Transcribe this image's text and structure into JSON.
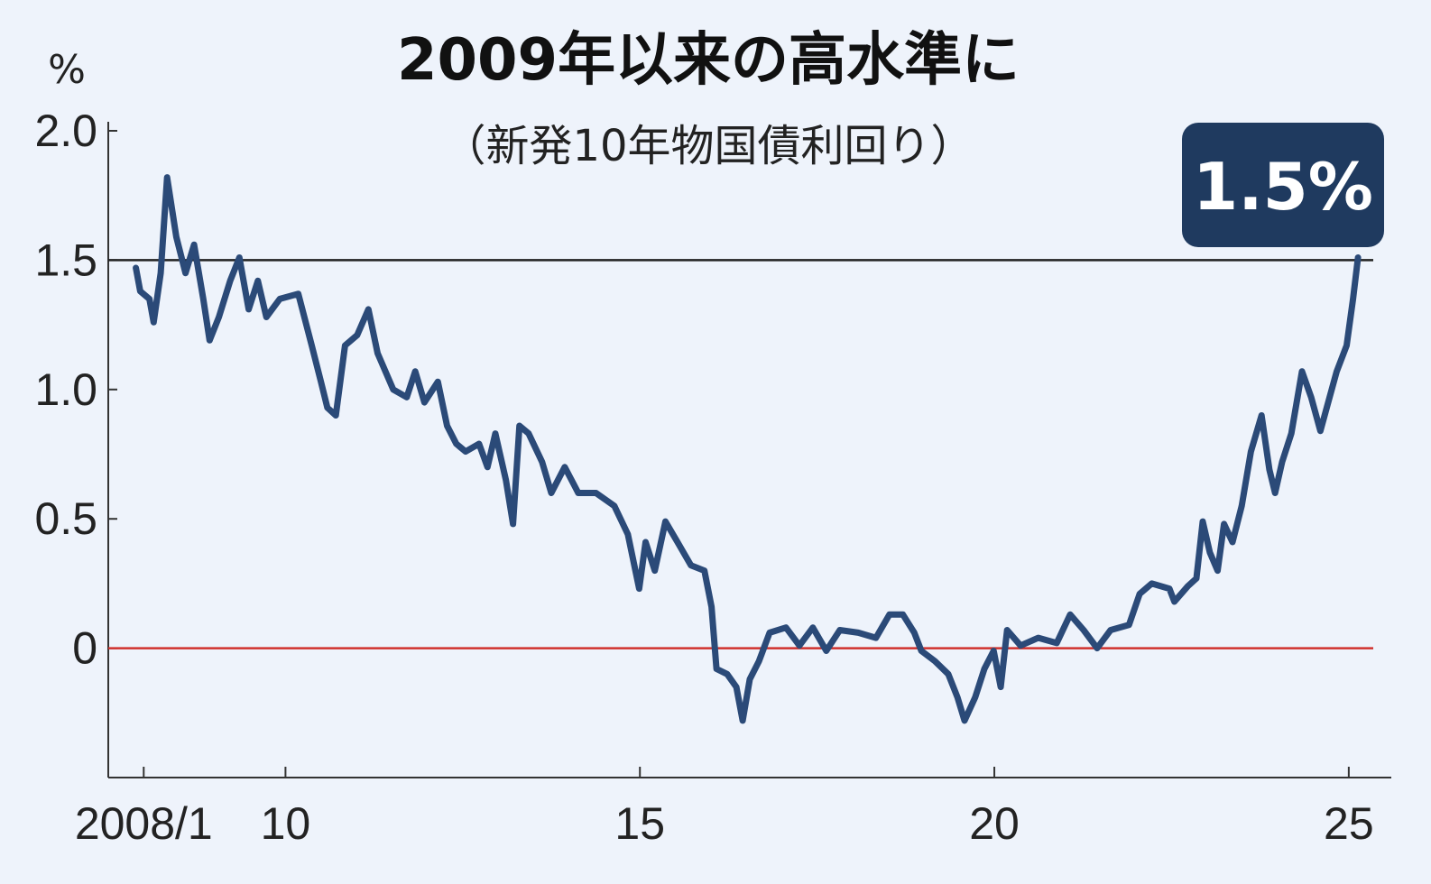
{
  "chart_data": {
    "type": "line",
    "title": "2009年以来の高水準に",
    "subtitle": "（新発10年物国債利回り）",
    "ylabel": "%",
    "xlabel": "",
    "xlim": [
      2007.5,
      2025.6
    ],
    "ylim": [
      -0.5,
      2.0
    ],
    "grid": false,
    "x_ticks": [
      {
        "value": 2008,
        "label": "2008/1"
      },
      {
        "value": 2010,
        "label": "10"
      },
      {
        "value": 2015,
        "label": "15"
      },
      {
        "value": 2020,
        "label": "20"
      },
      {
        "value": 2025,
        "label": "25"
      }
    ],
    "y_ticks": [
      {
        "value": 2.0,
        "label": "2.0"
      },
      {
        "value": 1.5,
        "label": "1.5"
      },
      {
        "value": 1.0,
        "label": "1.0"
      },
      {
        "value": 0.5,
        "label": "0.5"
      },
      {
        "value": 0,
        "label": "0"
      }
    ],
    "reference_lines": [
      {
        "value": 1.5,
        "color": "#222222"
      },
      {
        "value": 0,
        "color": "#d0312d"
      }
    ],
    "annotation": {
      "text": "1.5%",
      "x": 2025.13,
      "y": 1.5,
      "color": "#1f3a5f"
    },
    "line_color": "#2b4a78",
    "series": [
      {
        "x": [
          2007.89,
          2007.95,
          2008.08,
          2008.14,
          2008.24,
          2008.33,
          2008.46,
          2008.59,
          2008.71,
          2008.84,
          2008.93,
          2009.06,
          2009.22,
          2009.35,
          2009.48,
          2009.61,
          2009.73,
          2009.92,
          2010.18,
          2010.37,
          2010.5,
          2010.59,
          2010.71,
          2010.84,
          2011.01,
          2011.17,
          2011.3,
          2011.52,
          2011.71,
          2011.83,
          2011.96,
          2012.15,
          2012.28,
          2012.41,
          2012.54,
          2012.73,
          2012.85,
          2012.96,
          2013.11,
          2013.21,
          2013.3,
          2013.43,
          2013.62,
          2013.75,
          2013.94,
          2014.13,
          2014.38,
          2014.64,
          2014.83,
          2014.99,
          2015.08,
          2015.21,
          2015.36,
          2015.53,
          2015.72,
          2015.91,
          2016.01,
          2016.08,
          2016.23,
          2016.36,
          2016.45,
          2016.55,
          2016.68,
          2016.83,
          2017.06,
          2017.25,
          2017.44,
          2017.63,
          2017.82,
          2018.08,
          2018.33,
          2018.52,
          2018.71,
          2018.87,
          2018.97,
          2019.16,
          2019.35,
          2019.48,
          2019.58,
          2019.73,
          2019.86,
          2019.99,
          2020.09,
          2020.18,
          2020.37,
          2020.62,
          2020.88,
          2021.07,
          2021.26,
          2021.45,
          2021.64,
          2021.9,
          2022.05,
          2022.22,
          2022.47,
          2022.54,
          2022.73,
          2022.85,
          2022.94,
          2023.04,
          2023.15,
          2023.24,
          2023.36,
          2023.49,
          2023.62,
          2023.77,
          2023.88,
          2023.96,
          2024.06,
          2024.19,
          2024.34,
          2024.47,
          2024.6,
          2024.73,
          2024.83,
          2024.97,
          2025.06,
          2025.13
        ],
        "values": [
          1.47,
          1.38,
          1.35,
          1.26,
          1.45,
          1.82,
          1.59,
          1.45,
          1.56,
          1.35,
          1.19,
          1.28,
          1.42,
          1.51,
          1.31,
          1.42,
          1.28,
          1.35,
          1.37,
          1.17,
          1.03,
          0.93,
          0.9,
          1.17,
          1.21,
          1.31,
          1.14,
          1.0,
          0.97,
          1.07,
          0.95,
          1.03,
          0.86,
          0.79,
          0.76,
          0.79,
          0.7,
          0.83,
          0.65,
          0.48,
          0.86,
          0.83,
          0.72,
          0.6,
          0.7,
          0.6,
          0.6,
          0.55,
          0.44,
          0.23,
          0.41,
          0.3,
          0.49,
          0.41,
          0.32,
          0.3,
          0.16,
          -0.08,
          -0.1,
          -0.15,
          -0.28,
          -0.12,
          -0.05,
          0.06,
          0.08,
          0.01,
          0.08,
          -0.01,
          0.07,
          0.06,
          0.04,
          0.13,
          0.13,
          0.06,
          -0.01,
          -0.05,
          -0.1,
          -0.19,
          -0.28,
          -0.19,
          -0.08,
          -0.01,
          -0.15,
          0.07,
          0.01,
          0.04,
          0.02,
          0.13,
          0.07,
          0.0,
          0.07,
          0.09,
          0.21,
          0.25,
          0.23,
          0.18,
          0.24,
          0.27,
          0.49,
          0.37,
          0.3,
          0.48,
          0.41,
          0.55,
          0.76,
          0.9,
          0.69,
          0.6,
          0.72,
          0.83,
          1.07,
          0.97,
          0.84,
          0.97,
          1.07,
          1.17,
          1.35,
          1.51
        ]
      }
    ]
  }
}
